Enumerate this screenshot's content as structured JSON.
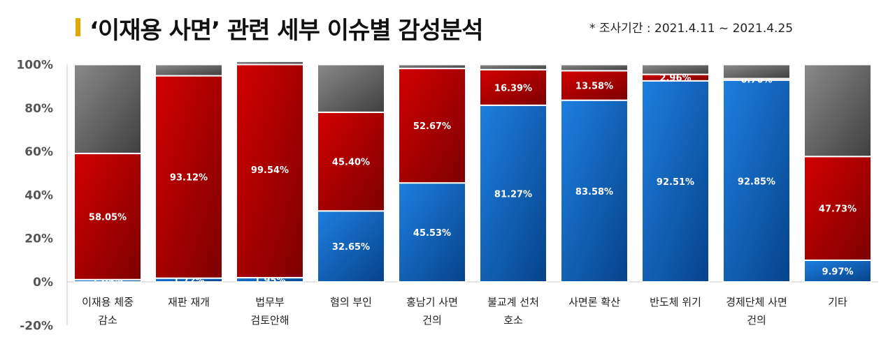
{
  "title": "‘이재용 사면’ 관련 세부 이슈별 감성분석",
  "period": "* 조사기간 : 2021.4.11 ~ 2021.4.25",
  "colors": {
    "positive": "#0a5fb4",
    "negative": "#b30000",
    "neutral": "#666666",
    "title_accent": "#e0a800"
  },
  "chart_data": {
    "type": "bar",
    "stacked": true,
    "categories": [
      [
        "이재용 체중",
        "감소"
      ],
      [
        "재판 재개"
      ],
      [
        "법무부",
        "검토안해"
      ],
      [
        "혐의 부인"
      ],
      [
        "홍남기 사면",
        "건의"
      ],
      [
        "불교계 선처",
        "호소"
      ],
      [
        "사면론 확산"
      ],
      [
        "반도체 위기"
      ],
      [
        "경제단체 사면",
        "건의"
      ],
      [
        "기타"
      ]
    ],
    "series": [
      {
        "color": "#0a5fb4",
        "values": [
          1.05,
          1.72,
          1.95,
          32.65,
          45.53,
          81.27,
          83.58,
          92.51,
          92.85,
          9.97
        ],
        "labels": [
          "1.05%",
          "1.72%",
          "1.95%",
          "32.65%",
          "45.53%",
          "81.27%",
          "83.58%",
          "92.51%",
          "92.85%",
          "9.97%"
        ]
      },
      {
        "color": "#b30000",
        "values": [
          58.05,
          93.12,
          99.54,
          45.4,
          52.67,
          16.39,
          13.58,
          2.96,
          0.7,
          47.73
        ],
        "labels": [
          "58.05%",
          "93.12%",
          "99.54%",
          "45.40%",
          "52.67%",
          "16.39%",
          "13.58%",
          "2.96%",
          "0.70%",
          "47.73%"
        ]
      },
      {
        "color": "#666666",
        "values": [
          40.9,
          5.16,
          -1.49,
          21.95,
          1.8,
          2.34,
          2.84,
          4.53,
          6.45,
          42.3
        ],
        "labels": [
          "",
          "",
          "",
          "",
          "",
          "",
          "",
          "",
          "",
          ""
        ]
      }
    ],
    "yticks": [
      "-20%",
      "0%",
      "20%",
      "40%",
      "60%",
      "80%",
      "100%"
    ],
    "ytick_values": [
      -20,
      0,
      20,
      40,
      60,
      80,
      100
    ],
    "ylim": [
      -20,
      100
    ],
    "grid": false,
    "legend": "none"
  }
}
